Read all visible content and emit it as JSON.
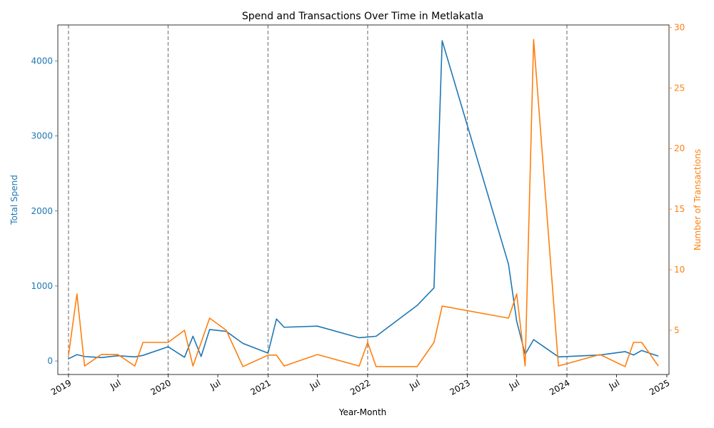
{
  "chart_data": {
    "type": "line",
    "title": "Spend and Transactions Over Time in Metlakatla",
    "xlabel": "Year-Month",
    "ylabel_left": "Total Spend",
    "ylabel_right": "Number of Transactions",
    "xlim": [
      "2018-11-23",
      "2025-01-09"
    ],
    "ylim_left": [
      -180,
      4480
    ],
    "ylim_right": [
      1.35,
      30.2
    ],
    "left_ticks": [
      0,
      1000,
      2000,
      3000,
      4000
    ],
    "right_ticks": [
      5,
      10,
      15,
      20,
      25,
      30
    ],
    "x_ticks": [
      {
        "date": "2019-01-01",
        "label": "2019"
      },
      {
        "date": "2019-07-01",
        "label": "Jul"
      },
      {
        "date": "2020-01-01",
        "label": "2020"
      },
      {
        "date": "2020-07-01",
        "label": "Jul"
      },
      {
        "date": "2021-01-01",
        "label": "2021"
      },
      {
        "date": "2021-07-01",
        "label": "Jul"
      },
      {
        "date": "2022-01-01",
        "label": "2022"
      },
      {
        "date": "2022-07-01",
        "label": "Jul"
      },
      {
        "date": "2023-01-01",
        "label": "2023"
      },
      {
        "date": "2023-07-01",
        "label": "Jul"
      },
      {
        "date": "2024-01-01",
        "label": "2024"
      },
      {
        "date": "2024-07-01",
        "label": "Jul"
      },
      {
        "date": "2025-01-01",
        "label": "2025"
      }
    ],
    "year_lines": [
      "2019-01-01",
      "2020-01-01",
      "2021-01-01",
      "2022-01-01",
      "2023-01-01",
      "2024-01-01"
    ],
    "grid": false,
    "colors": {
      "spend": "#1f77b4",
      "transactions": "#ff7f0e",
      "year_line": "#808080",
      "axis": "#000000"
    },
    "series": [
      {
        "name": "Total Spend",
        "axis": "left",
        "points": [
          [
            "2019-01-01",
            30
          ],
          [
            "2019-02-01",
            85
          ],
          [
            "2019-03-01",
            60
          ],
          [
            "2019-05-01",
            45
          ],
          [
            "2019-07-01",
            70
          ],
          [
            "2019-09-01",
            55
          ],
          [
            "2019-10-01",
            75
          ],
          [
            "2020-01-01",
            190
          ],
          [
            "2020-03-01",
            50
          ],
          [
            "2020-04-01",
            330
          ],
          [
            "2020-05-01",
            60
          ],
          [
            "2020-06-01",
            420
          ],
          [
            "2020-08-01",
            395
          ],
          [
            "2020-10-01",
            235
          ],
          [
            "2021-01-01",
            105
          ],
          [
            "2021-02-01",
            560
          ],
          [
            "2021-03-01",
            450
          ],
          [
            "2021-07-01",
            465
          ],
          [
            "2021-12-01",
            310
          ],
          [
            "2022-01-01",
            320
          ],
          [
            "2022-02-01",
            330
          ],
          [
            "2022-07-01",
            740
          ],
          [
            "2022-09-01",
            975
          ],
          [
            "2022-10-01",
            4270
          ],
          [
            "2023-06-01",
            1290
          ],
          [
            "2023-07-01",
            530
          ],
          [
            "2023-08-01",
            90
          ],
          [
            "2023-09-01",
            285
          ],
          [
            "2023-12-01",
            55
          ],
          [
            "2024-05-01",
            80
          ],
          [
            "2024-08-01",
            125
          ],
          [
            "2024-09-01",
            80
          ],
          [
            "2024-10-01",
            140
          ],
          [
            "2024-12-01",
            65
          ]
        ]
      },
      {
        "name": "Number of Transactions",
        "axis": "right",
        "points": [
          [
            "2019-01-01",
            2.9
          ],
          [
            "2019-02-01",
            8
          ],
          [
            "2019-03-01",
            2.05
          ],
          [
            "2019-05-01",
            3
          ],
          [
            "2019-07-01",
            3
          ],
          [
            "2019-09-01",
            2.05
          ],
          [
            "2019-10-01",
            4
          ],
          [
            "2020-01-01",
            4
          ],
          [
            "2020-03-01",
            5
          ],
          [
            "2020-04-01",
            2.05
          ],
          [
            "2020-06-01",
            6
          ],
          [
            "2020-08-01",
            5
          ],
          [
            "2020-10-01",
            2
          ],
          [
            "2021-01-01",
            2.95
          ],
          [
            "2021-02-01",
            2.95
          ],
          [
            "2021-03-01",
            2.05
          ],
          [
            "2021-07-01",
            3
          ],
          [
            "2021-12-01",
            2.05
          ],
          [
            "2022-01-01",
            4
          ],
          [
            "2022-02-01",
            2
          ],
          [
            "2022-07-01",
            2
          ],
          [
            "2022-09-01",
            4
          ],
          [
            "2022-10-01",
            7
          ],
          [
            "2023-06-01",
            6
          ],
          [
            "2023-07-01",
            8
          ],
          [
            "2023-08-01",
            2.05
          ],
          [
            "2023-09-01",
            29
          ],
          [
            "2023-12-01",
            2.05
          ],
          [
            "2024-05-01",
            3
          ],
          [
            "2024-08-01",
            2
          ],
          [
            "2024-09-01",
            4
          ],
          [
            "2024-10-01",
            4
          ],
          [
            "2024-12-01",
            2.05
          ]
        ]
      }
    ]
  }
}
